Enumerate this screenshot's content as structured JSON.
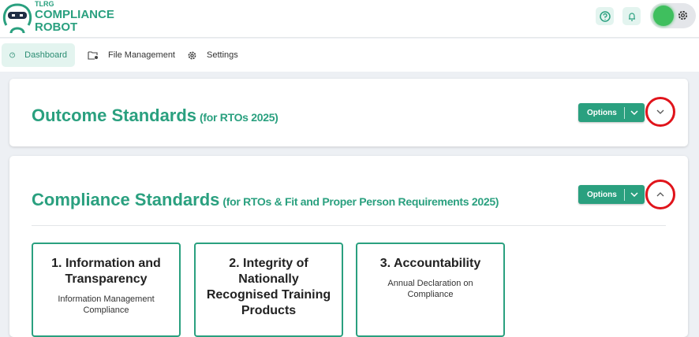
{
  "app": {
    "logo_small": "TLRG",
    "logo_line1": "COMPLIANCE",
    "logo_line2": "ROBOT",
    "accent": "#2aa07f"
  },
  "header": {
    "help_icon": "help-circle-icon",
    "bell_icon": "bell-icon",
    "settings_icon": "gear-icon"
  },
  "nav": [
    {
      "label": "Dashboard",
      "icon": "gauge-icon",
      "active": true
    },
    {
      "label": "File Management",
      "icon": "folder-gear-icon"
    },
    {
      "label": "Settings",
      "icon": "gear-icon"
    }
  ],
  "sections": [
    {
      "title": "Outcome Standards",
      "subtitle": "(for RTOs 2025)",
      "options_label": "Options",
      "expanded": false
    },
    {
      "title": "Compliance Standards",
      "subtitle": "(for RTOs & Fit and Proper Person Requirements 2025)",
      "options_label": "Options",
      "expanded": true,
      "cards": [
        {
          "title": "1. Information and Transparency",
          "desc": "Information Management Compliance"
        },
        {
          "title": "2. Integrity of Nationally Recognised Training Products",
          "desc": ""
        },
        {
          "title": "3. Accountability",
          "desc": "Annual Declaration on Compliance"
        }
      ]
    }
  ]
}
